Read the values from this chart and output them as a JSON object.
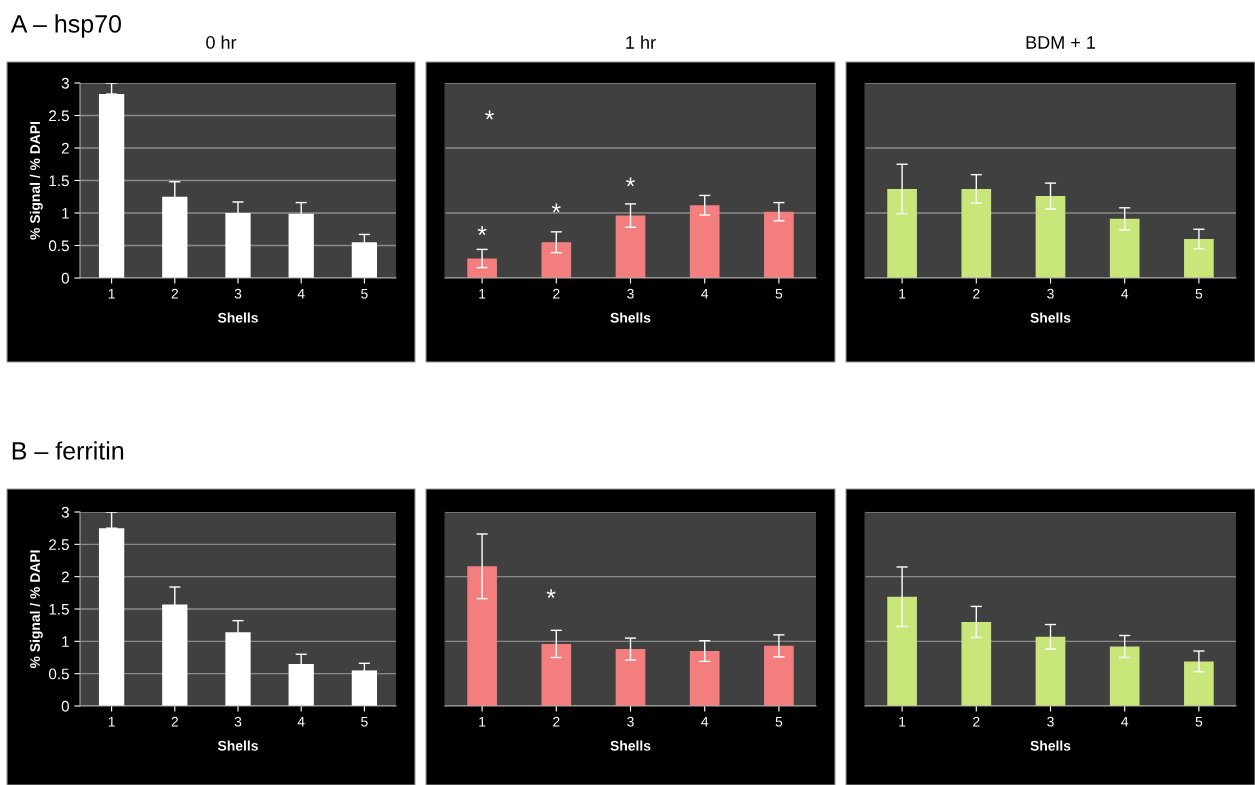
{
  "chart_data": [
    {
      "type": "bar",
      "title": "0 hr",
      "annotations": [
        "A – hsp70"
      ],
      "xlabel": "Shells",
      "ylabel": "% Signal / % DAPI",
      "categories": [
        "1",
        "2",
        "3",
        "4",
        "5"
      ],
      "values": [
        2.83,
        1.25,
        1.0,
        0.99,
        0.55
      ],
      "errors": [
        [
          2.83,
          3.0
        ],
        0.23,
        0.17,
        0.17,
        0.12
      ],
      "color": "#ffffff",
      "ylim": [
        0,
        3
      ],
      "yticks": [
        0,
        0.5,
        1,
        1.5,
        2,
        2.5,
        3
      ],
      "grid": "y"
    },
    {
      "type": "bar",
      "title": "1 hr",
      "xlabel": "Shells",
      "categories": [
        "1",
        "2",
        "3",
        "4",
        "5"
      ],
      "values": [
        0.3,
        0.55,
        0.96,
        1.12,
        1.02
      ],
      "errors": [
        0.14,
        0.16,
        0.18,
        0.15,
        0.14
      ],
      "color": "#f47e7e",
      "ylim": [
        0,
        3
      ],
      "yticks": [
        {
          "value": 0,
          "label": null
        },
        {
          "value": 1,
          "label": null
        },
        {
          "value": 2,
          "label": null
        },
        {
          "value": 3,
          "label": null
        }
      ],
      "tick_labels": "x",
      "grid": "y",
      "annotations": [
        "*",
        "*",
        "*",
        "*"
      ]
    },
    {
      "type": "bar",
      "title": "BDM + 1",
      "xlabel": "Shells",
      "categories": [
        "1",
        "2",
        "3",
        "4",
        "5"
      ],
      "values": [
        1.37,
        1.37,
        1.26,
        0.91,
        0.6
      ],
      "errors": [
        0.38,
        0.22,
        0.2,
        0.17,
        0.15
      ],
      "color": "#c8e67a",
      "ylim": [
        0,
        3
      ],
      "yticks": [
        {
          "value": 0,
          "label": null
        },
        {
          "value": 1,
          "label": null
        },
        {
          "value": 2,
          "label": null
        },
        {
          "value": 3,
          "label": null
        }
      ],
      "tick_labels": "x",
      "grid": "y"
    },
    {
      "type": "bar",
      "annotations": [
        "B – ferritin"
      ],
      "xlabel": "Shells",
      "ylabel": "% Signal / % DAPI",
      "categories": [
        "1",
        "2",
        "3",
        "4",
        "5"
      ],
      "values": [
        2.75,
        1.57,
        1.14,
        0.65,
        0.55
      ],
      "errors": [
        [
          2.75,
          3.0
        ],
        0.27,
        0.18,
        0.15,
        0.11
      ],
      "color": "#ffffff",
      "ylim": [
        0,
        3
      ],
      "yticks": [
        0,
        0.5,
        1,
        1.5,
        2,
        2.5,
        3
      ],
      "grid": "y"
    },
    {
      "type": "bar",
      "xlabel": "Shells",
      "categories": [
        "1",
        "2",
        "3",
        "4",
        "5"
      ],
      "values": [
        2.16,
        0.96,
        0.88,
        0.85,
        0.93
      ],
      "errors": [
        0.5,
        0.21,
        0.17,
        0.16,
        0.17
      ],
      "color": "#f47e7e",
      "ylim": [
        0,
        3
      ],
      "yticks": [
        {
          "value": 0,
          "label": null
        },
        {
          "value": 1,
          "label": null
        },
        {
          "value": 2,
          "label": null
        },
        {
          "value": 3,
          "label": null
        }
      ],
      "tick_labels": "x",
      "grid": "y",
      "annotations": [
        "*"
      ]
    },
    {
      "type": "bar",
      "xlabel": "Shells",
      "categories": [
        "1",
        "2",
        "3",
        "4",
        "5"
      ],
      "values": [
        1.69,
        1.3,
        1.07,
        0.92,
        0.69
      ],
      "errors": [
        0.46,
        0.24,
        0.19,
        0.17,
        0.16
      ],
      "color": "#c8e67a",
      "ylim": [
        0,
        3
      ],
      "yticks": [
        {
          "value": 0,
          "label": null
        },
        {
          "value": 1,
          "label": null
        },
        {
          "value": 2,
          "label": null
        },
        {
          "value": 3,
          "label": null
        }
      ],
      "tick_labels": "x",
      "grid": "y"
    }
  ]
}
